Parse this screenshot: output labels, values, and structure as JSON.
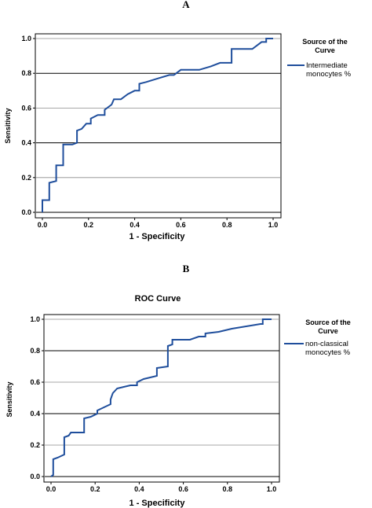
{
  "chart_data": [
    {
      "panel_label": "A",
      "type": "line",
      "title": "",
      "xlabel": "1 - Specificity",
      "ylabel": "Sensitivity",
      "xlim": [
        0,
        1
      ],
      "ylim": [
        0,
        1
      ],
      "ticks": [
        "0.0",
        "0.2",
        "0.4",
        "0.6",
        "0.8",
        "1.0"
      ],
      "grid": "horizontal",
      "legend": {
        "title": "Source of the Curve",
        "placement": "right"
      },
      "line_color": "#1f4e9c",
      "series": [
        {
          "name": "Intermediate monocytes %",
          "points": [
            [
              0,
              0
            ],
            [
              0,
              0.07
            ],
            [
              0.03,
              0.07
            ],
            [
              0.03,
              0.17
            ],
            [
              0.06,
              0.18
            ],
            [
              0.06,
              0.27
            ],
            [
              0.09,
              0.27
            ],
            [
              0.09,
              0.39
            ],
            [
              0.13,
              0.39
            ],
            [
              0.15,
              0.4
            ],
            [
              0.15,
              0.47
            ],
            [
              0.17,
              0.48
            ],
            [
              0.19,
              0.51
            ],
            [
              0.21,
              0.51
            ],
            [
              0.21,
              0.54
            ],
            [
              0.24,
              0.56
            ],
            [
              0.27,
              0.56
            ],
            [
              0.27,
              0.59
            ],
            [
              0.3,
              0.62
            ],
            [
              0.31,
              0.65
            ],
            [
              0.34,
              0.65
            ],
            [
              0.37,
              0.68
            ],
            [
              0.4,
              0.7
            ],
            [
              0.42,
              0.7
            ],
            [
              0.42,
              0.74
            ],
            [
              0.45,
              0.75
            ],
            [
              0.5,
              0.77
            ],
            [
              0.55,
              0.79
            ],
            [
              0.57,
              0.79
            ],
            [
              0.6,
              0.82
            ],
            [
              0.68,
              0.82
            ],
            [
              0.73,
              0.84
            ],
            [
              0.77,
              0.86
            ],
            [
              0.82,
              0.86
            ],
            [
              0.82,
              0.94
            ],
            [
              0.91,
              0.94
            ],
            [
              0.95,
              0.98
            ],
            [
              0.97,
              0.98
            ],
            [
              0.97,
              1.0
            ],
            [
              1.0,
              1.0
            ]
          ]
        }
      ]
    },
    {
      "panel_label": "B",
      "type": "line",
      "title": "ROC Curve",
      "xlabel": "1 - Specificity",
      "ylabel": "Sensitivity",
      "xlim": [
        0,
        1
      ],
      "ylim": [
        0,
        1
      ],
      "ticks": [
        "0.0",
        "0.2",
        "0.4",
        "0.6",
        "0.8",
        "1.0"
      ],
      "grid": "horizontal",
      "legend": {
        "title": "Source of the Curve",
        "placement": "right"
      },
      "line_color": "#1f4e9c",
      "series": [
        {
          "name": "non-classical monocytes %",
          "points": [
            [
              0,
              0
            ],
            [
              0.01,
              0.01
            ],
            [
              0.01,
              0.11
            ],
            [
              0.03,
              0.12
            ],
            [
              0.06,
              0.14
            ],
            [
              0.06,
              0.25
            ],
            [
              0.08,
              0.26
            ],
            [
              0.09,
              0.28
            ],
            [
              0.15,
              0.28
            ],
            [
              0.15,
              0.37
            ],
            [
              0.18,
              0.38
            ],
            [
              0.21,
              0.4
            ],
            [
              0.21,
              0.42
            ],
            [
              0.24,
              0.44
            ],
            [
              0.27,
              0.46
            ],
            [
              0.27,
              0.49
            ],
            [
              0.28,
              0.53
            ],
            [
              0.3,
              0.56
            ],
            [
              0.33,
              0.57
            ],
            [
              0.36,
              0.58
            ],
            [
              0.39,
              0.58
            ],
            [
              0.39,
              0.6
            ],
            [
              0.42,
              0.62
            ],
            [
              0.48,
              0.64
            ],
            [
              0.48,
              0.69
            ],
            [
              0.53,
              0.7
            ],
            [
              0.53,
              0.83
            ],
            [
              0.55,
              0.84
            ],
            [
              0.55,
              0.87
            ],
            [
              0.63,
              0.87
            ],
            [
              0.67,
              0.89
            ],
            [
              0.7,
              0.89
            ],
            [
              0.7,
              0.91
            ],
            [
              0.76,
              0.92
            ],
            [
              0.79,
              0.93
            ],
            [
              0.82,
              0.94
            ],
            [
              0.95,
              0.97
            ],
            [
              0.96,
              0.97
            ],
            [
              0.96,
              1.0
            ],
            [
              1.0,
              1.0
            ]
          ]
        }
      ]
    }
  ]
}
